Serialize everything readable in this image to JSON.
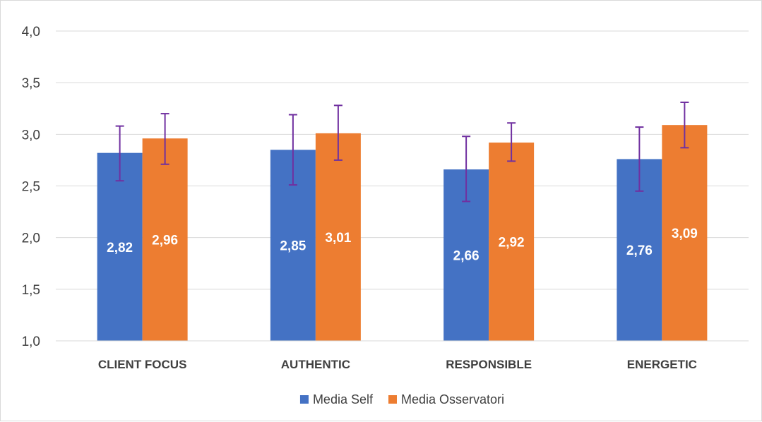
{
  "chart_data": {
    "type": "bar",
    "categories": [
      "CLIENT FOCUS",
      "AUTHENTIC",
      "RESPONSIBLE",
      "ENERGETIC"
    ],
    "series": [
      {
        "name": "Media Self",
        "color": "#4472C4",
        "values": [
          2.82,
          2.85,
          2.66,
          2.76
        ],
        "labels": [
          "2,82",
          "2,85",
          "2,66",
          "2,76"
        ],
        "error_low": [
          2.55,
          2.51,
          2.35,
          2.45
        ],
        "error_high": [
          3.08,
          3.19,
          2.98,
          3.07
        ]
      },
      {
        "name": "Media Osservatori",
        "color": "#ED7D31",
        "values": [
          2.96,
          3.01,
          2.92,
          3.09
        ],
        "labels": [
          "2,96",
          "3,01",
          "2,92",
          "3,09"
        ],
        "error_low": [
          2.71,
          2.75,
          2.74,
          2.87
        ],
        "error_high": [
          3.2,
          3.28,
          3.11,
          3.31
        ]
      }
    ],
    "error_bar_color": "#7030A0",
    "ylim": [
      1.0,
      4.0
    ],
    "y_ticks": [
      "1,0",
      "1,5",
      "2,0",
      "2,5",
      "3,0",
      "3,5",
      "4,0"
    ],
    "y_tick_values": [
      1.0,
      1.5,
      2.0,
      2.5,
      3.0,
      3.5,
      4.0
    ],
    "grid": true,
    "legend_position": "bottom",
    "title": "",
    "xlabel": "",
    "ylabel": ""
  }
}
